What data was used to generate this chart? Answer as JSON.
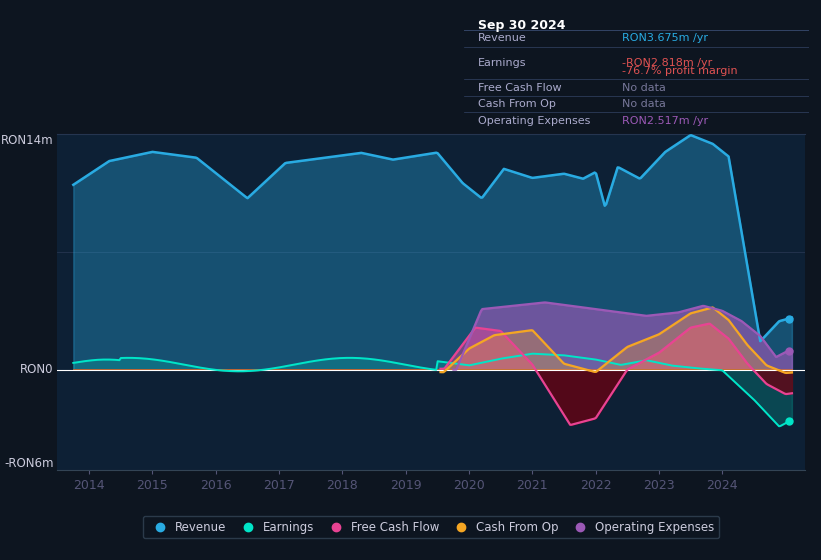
{
  "bg_color": "#0d1520",
  "plot_bg_color": "#0d2035",
  "ylabel_top": "RON14m",
  "ylabel_zero": "RON0",
  "ylabel_bottom": "-RON6m",
  "ylim": [
    -6,
    14
  ],
  "xlim": [
    2013.5,
    2025.3
  ],
  "xticks": [
    2014,
    2015,
    2016,
    2017,
    2018,
    2019,
    2020,
    2021,
    2022,
    2023,
    2024
  ],
  "colors": {
    "revenue": "#29abe2",
    "earnings": "#00e5c8",
    "free_cash_flow": "#e84393",
    "cash_from_op": "#f5a623",
    "operating_expenses": "#9b59b6"
  },
  "info_box": {
    "title": "Sep 30 2024",
    "rows": [
      {
        "label": "Revenue",
        "value": "RON3.675m /yr",
        "value_color": "#29abe2"
      },
      {
        "label": "Earnings",
        "value": "-RON2.818m /yr",
        "value_color": "#e05252",
        "extra": "-76.7% profit margin",
        "extra_color": "#e05252"
      },
      {
        "label": "Free Cash Flow",
        "value": "No data",
        "value_color": "#777799"
      },
      {
        "label": "Cash From Op",
        "value": "No data",
        "value_color": "#777799"
      },
      {
        "label": "Operating Expenses",
        "value": "RON2.517m /yr",
        "value_color": "#9b59b6"
      }
    ]
  },
  "legend": [
    {
      "label": "Revenue",
      "color": "#29abe2"
    },
    {
      "label": "Earnings",
      "color": "#00e5c8"
    },
    {
      "label": "Free Cash Flow",
      "color": "#e84393"
    },
    {
      "label": "Cash From Op",
      "color": "#f5a623"
    },
    {
      "label": "Operating Expenses",
      "color": "#9b59b6"
    }
  ]
}
